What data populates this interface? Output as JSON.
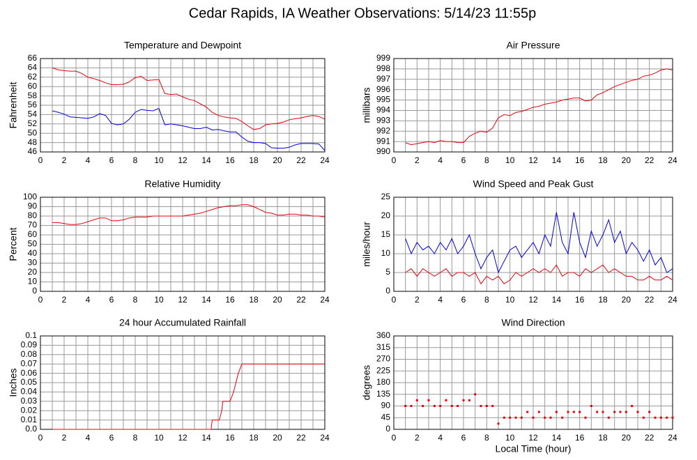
{
  "title": "Cedar Rapids, IA Weather Observations: 5/14/23 11:55p",
  "chart_data": [
    {
      "type": "line",
      "title": "Temperature and Dewpoint",
      "ylabel": "Fahrenheit",
      "x": [
        1,
        1.5,
        2,
        2.5,
        3,
        3.5,
        4,
        4.5,
        5,
        5.5,
        6,
        6.5,
        7,
        7.5,
        8,
        8.5,
        9,
        9.5,
        10,
        10.5,
        11,
        11.5,
        12,
        12.5,
        13,
        13.5,
        14,
        14.5,
        15,
        15.5,
        16,
        16.5,
        17,
        17.5,
        18,
        18.5,
        19,
        19.5,
        20,
        20.5,
        21,
        21.5,
        22,
        22.5,
        23,
        23.5,
        24
      ],
      "series": [
        {
          "color": "#e8000b",
          "values": [
            64,
            63.6,
            63.4,
            63.3,
            63.3,
            62.8,
            62,
            61.7,
            61.3,
            60.8,
            60.4,
            60.4,
            60.5,
            61,
            61.9,
            62.2,
            61.3,
            61.4,
            61.5,
            58.5,
            58.3,
            58.4,
            57.8,
            57.3,
            57,
            56.3,
            55.6,
            54.5,
            53.8,
            53.5,
            53.3,
            53.2,
            52.5,
            51.6,
            50.8,
            51,
            51.8,
            52,
            52.1,
            52.4,
            52.9,
            53.1,
            53.3,
            53.6,
            53.8,
            53.6,
            53
          ]
        },
        {
          "color": "#0000e0",
          "values": [
            54.8,
            54.5,
            54.1,
            53.5,
            53.4,
            53.3,
            53.2,
            53.5,
            54.2,
            53.8,
            52.1,
            51.8,
            52,
            53,
            54.5,
            55.1,
            54.9,
            54.8,
            55.3,
            51.8,
            52,
            51.8,
            51.6,
            51.3,
            51,
            51,
            51.3,
            50.7,
            50.8,
            50.5,
            50.3,
            50.3,
            49.2,
            48.3,
            48,
            48,
            47.8,
            46.9,
            46.8,
            46.8,
            47,
            47.5,
            47.8,
            47.8,
            47.8,
            47.7,
            46.3
          ]
        }
      ],
      "xlim": [
        0,
        24
      ],
      "xticks": [
        0,
        2,
        4,
        6,
        8,
        10,
        12,
        14,
        16,
        18,
        20,
        22,
        24
      ],
      "ylim": [
        46,
        66
      ],
      "yticks": [
        46,
        48,
        50,
        52,
        54,
        56,
        58,
        60,
        62,
        64,
        66
      ],
      "grid": true
    },
    {
      "type": "line",
      "title": "Air Pressure",
      "ylabel": "millibars",
      "x": [
        1,
        1.5,
        2,
        2.5,
        3,
        3.5,
        4,
        4.5,
        5,
        5.5,
        6,
        6.5,
        7,
        7.5,
        8,
        8.5,
        9,
        9.5,
        10,
        10.5,
        11,
        11.5,
        12,
        12.5,
        13,
        13.5,
        14,
        14.5,
        15,
        15.5,
        16,
        16.5,
        17,
        17.5,
        18,
        18.5,
        19,
        19.5,
        20,
        20.5,
        21,
        21.5,
        22,
        22.5,
        23,
        23.5,
        24
      ],
      "series": [
        {
          "color": "#e8000b",
          "values": [
            990.9,
            990.7,
            990.8,
            990.9,
            991,
            990.9,
            991.1,
            991,
            991,
            990.9,
            990.9,
            991.5,
            991.8,
            992,
            991.9,
            992.3,
            993.3,
            993.6,
            993.5,
            993.8,
            993.9,
            994.1,
            994.3,
            994.4,
            994.6,
            994.7,
            994.8,
            995,
            995.1,
            995.2,
            995.2,
            994.9,
            995,
            995.5,
            995.7,
            996,
            996.3,
            996.5,
            996.7,
            996.9,
            997,
            997.3,
            997.4,
            997.6,
            997.9,
            998,
            997.9
          ]
        }
      ],
      "xlim": [
        0,
        24
      ],
      "xticks": [
        0,
        2,
        4,
        6,
        8,
        10,
        12,
        14,
        16,
        18,
        20,
        22,
        24
      ],
      "ylim": [
        990,
        999
      ],
      "yticks": [
        990,
        991,
        992,
        993,
        994,
        995,
        996,
        997,
        998,
        999
      ],
      "grid": true
    },
    {
      "type": "line",
      "title": "Relative Humidity",
      "ylabel": "Percent",
      "x": [
        1,
        1.5,
        2,
        2.5,
        3,
        3.5,
        4,
        4.5,
        5,
        5.5,
        6,
        6.5,
        7,
        7.5,
        8,
        8.5,
        9,
        9.5,
        10,
        10.5,
        11,
        11.5,
        12,
        12.5,
        13,
        13.5,
        14,
        14.5,
        15,
        15.5,
        16,
        16.5,
        17,
        17.5,
        18,
        18.5,
        19,
        19.5,
        20,
        20.5,
        21,
        21.5,
        22,
        22.5,
        23,
        23.5,
        24
      ],
      "series": [
        {
          "color": "#e8000b",
          "values": [
            73,
            73,
            72,
            71,
            71,
            72,
            74,
            76,
            78,
            78,
            75,
            75,
            76,
            78,
            79,
            79,
            79,
            80,
            80,
            80,
            80,
            80,
            80,
            81,
            82,
            83,
            85,
            87,
            89,
            90,
            91,
            91,
            92,
            92,
            90,
            87,
            84,
            83,
            81,
            81,
            82,
            82,
            81,
            81,
            80,
            80,
            79
          ]
        }
      ],
      "xlim": [
        0,
        24
      ],
      "xticks": [
        0,
        2,
        4,
        6,
        8,
        10,
        12,
        14,
        16,
        18,
        20,
        22,
        24
      ],
      "ylim": [
        0,
        100
      ],
      "yticks": [
        0,
        10,
        20,
        30,
        40,
        50,
        60,
        70,
        80,
        90,
        100
      ],
      "grid": true
    },
    {
      "type": "line",
      "title": "Wind Speed and Peak Gust",
      "ylabel": "miles/hour",
      "x": [
        1,
        1.5,
        2,
        2.5,
        3,
        3.5,
        4,
        4.5,
        5,
        5.5,
        6,
        6.5,
        7,
        7.5,
        8,
        8.5,
        9,
        9.5,
        10,
        10.5,
        11,
        11.5,
        12,
        12.5,
        13,
        13.5,
        14,
        14.5,
        15,
        15.5,
        16,
        16.5,
        17,
        17.5,
        18,
        18.5,
        19,
        19.5,
        20,
        20.5,
        21,
        21.5,
        22,
        22.5,
        23,
        23.5,
        24
      ],
      "series": [
        {
          "color": "#0000e0",
          "values": [
            14,
            10,
            13,
            11,
            12,
            10,
            13,
            11,
            14,
            10,
            12,
            15,
            10,
            6,
            9,
            11,
            5,
            8,
            11,
            12,
            9,
            11,
            13,
            10,
            15,
            12,
            21,
            13,
            10,
            21,
            13,
            9,
            16,
            12,
            15,
            19,
            13,
            16,
            10,
            13,
            11,
            8,
            11,
            7,
            9,
            5,
            6
          ]
        },
        {
          "color": "#e8000b",
          "values": [
            5,
            6,
            4,
            6,
            5,
            4,
            5,
            6,
            4,
            5,
            5,
            4,
            5,
            2,
            4,
            3,
            4,
            2,
            3,
            5,
            4,
            5,
            6,
            5,
            6,
            5,
            7,
            4,
            5,
            5,
            4,
            6,
            5,
            6,
            7,
            5,
            6,
            5,
            4,
            4,
            3,
            3,
            4,
            3,
            3,
            4,
            3
          ]
        }
      ],
      "xlim": [
        0,
        24
      ],
      "xticks": [
        0,
        2,
        4,
        6,
        8,
        10,
        12,
        14,
        16,
        18,
        20,
        22,
        24
      ],
      "ylim": [
        0,
        25
      ],
      "yticks": [
        0,
        5,
        10,
        15,
        20,
        25
      ],
      "grid": true
    },
    {
      "type": "line",
      "title": "24 hour Accumulated Rainfall",
      "ylabel": "Inches",
      "x": [
        1,
        14.4,
        14.5,
        15.1,
        15.3,
        15.4,
        16,
        16.3,
        16.5,
        16.7,
        17,
        24
      ],
      "series": [
        {
          "color": "#e8000b",
          "values": [
            0,
            0,
            0.01,
            0.01,
            0.02,
            0.03,
            0.03,
            0.04,
            0.05,
            0.06,
            0.07,
            0.07
          ]
        }
      ],
      "xlim": [
        0,
        24
      ],
      "xticks": [
        0,
        2,
        4,
        6,
        8,
        10,
        12,
        14,
        16,
        18,
        20,
        22,
        24
      ],
      "ylim": [
        0,
        0.1
      ],
      "yticks": [
        {
          "value": 0,
          "label": "0.0"
        },
        0.01,
        0.02,
        0.03,
        0.04,
        0.05,
        0.06,
        0.07,
        0.08,
        0.09,
        0.1
      ],
      "grid": true
    },
    {
      "type": "scatter",
      "title": "Wind Direction",
      "ylabel": "degrees",
      "xlabel": "Local Time (hour)",
      "x": [
        1,
        1.5,
        2,
        2.5,
        3,
        3.5,
        4,
        4.5,
        5,
        5.5,
        6,
        6.5,
        7,
        7.5,
        8,
        8.5,
        9,
        9.5,
        10,
        10.5,
        11,
        11.5,
        12,
        12.5,
        13,
        13.5,
        14,
        14.5,
        15,
        15.5,
        16,
        16.5,
        17,
        17.5,
        18,
        18.5,
        19,
        19.5,
        20,
        20.5,
        21,
        21.5,
        22,
        22.5,
        23,
        23.5,
        24
      ],
      "series": [
        {
          "color": "#e8000b",
          "values": [
            90,
            90,
            112,
            90,
            112,
            90,
            90,
            112,
            90,
            90,
            112,
            112,
            135,
            90,
            90,
            90,
            22,
            45,
            45,
            45,
            45,
            67,
            45,
            67,
            45,
            45,
            67,
            45,
            67,
            67,
            67,
            45,
            90,
            67,
            67,
            45,
            67,
            67,
            67,
            90,
            67,
            45,
            67,
            45,
            45,
            45,
            45
          ]
        }
      ],
      "xlim": [
        0,
        24
      ],
      "xticks": [
        0,
        2,
        4,
        6,
        8,
        10,
        12,
        14,
        16,
        18,
        20,
        22,
        24
      ],
      "ylim": [
        0,
        360
      ],
      "yticks": [
        0,
        45,
        90,
        135,
        180,
        225,
        270,
        315,
        360
      ],
      "grid": true
    }
  ]
}
